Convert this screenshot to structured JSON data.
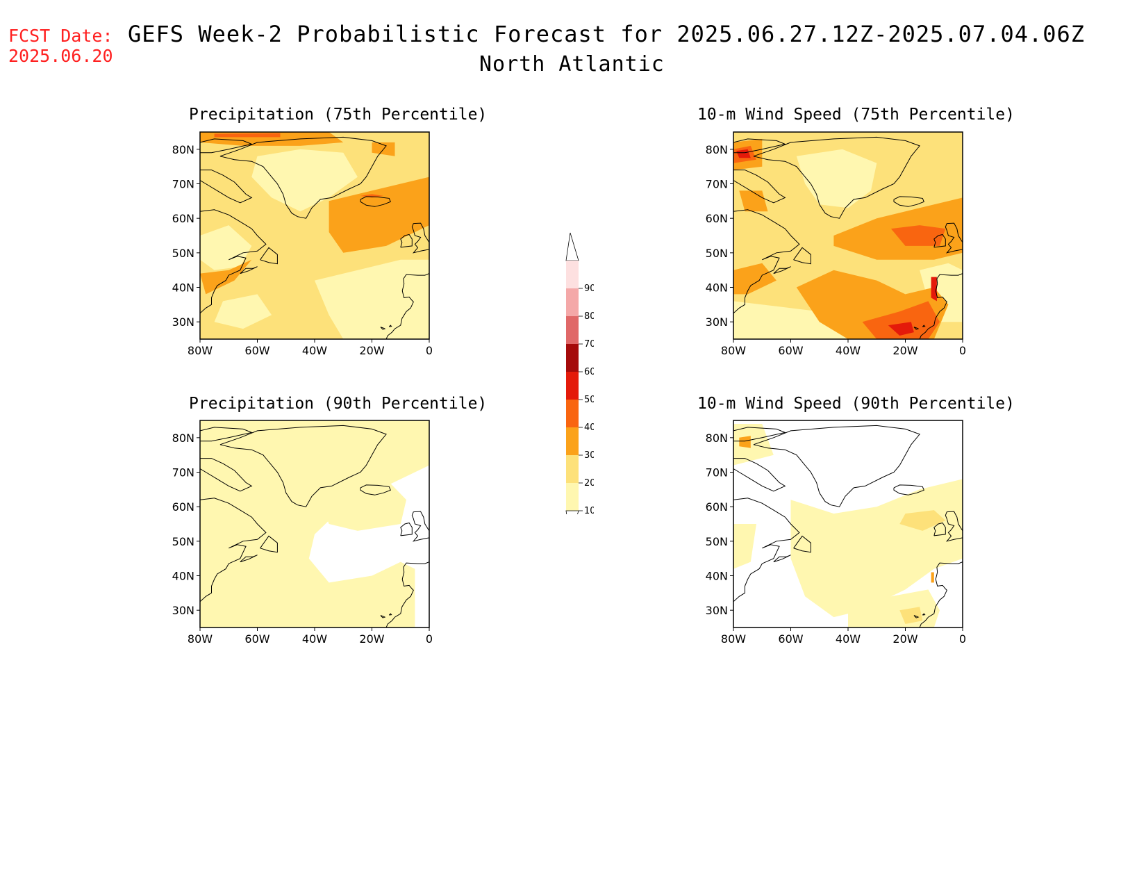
{
  "forecast_date": {
    "label": "FCST Date:",
    "value": "2025.06.20"
  },
  "title": "GEFS Week-2 Probabilistic Forecast for 2025.06.27.12Z-2025.07.04.06Z",
  "region": "North Atlantic",
  "colors": {
    "c10_20": "#fff7b0",
    "c20_30": "#fde17a",
    "c30_40": "#fba21a",
    "c40_50": "#f96510",
    "c50_60": "#e41a0a",
    "c60_70": "#a50a0a",
    "c70_80": "#e06868",
    "c80_90": "#f4a8a8",
    "c90": "#fde0e0",
    "accent_red": "#ff2020"
  },
  "colorbar": {
    "levels": [
      "10",
      "20",
      "30",
      "40",
      "50",
      "60",
      "70",
      "80",
      "90"
    ]
  },
  "axes": {
    "x_ticks": [
      "80W",
      "60W",
      "40W",
      "20W",
      "0"
    ],
    "y_ticks": [
      "80N",
      "70N",
      "60N",
      "50N",
      "40N",
      "30N"
    ]
  },
  "panels": [
    {
      "title": "Precipitation (75th Percentile)"
    },
    {
      "title": "10-m Wind Speed (75th Percentile)"
    },
    {
      "title": "Precipitation (90th Percentile)"
    },
    {
      "title": "10-m Wind Speed (90th Percentile)"
    }
  ]
}
